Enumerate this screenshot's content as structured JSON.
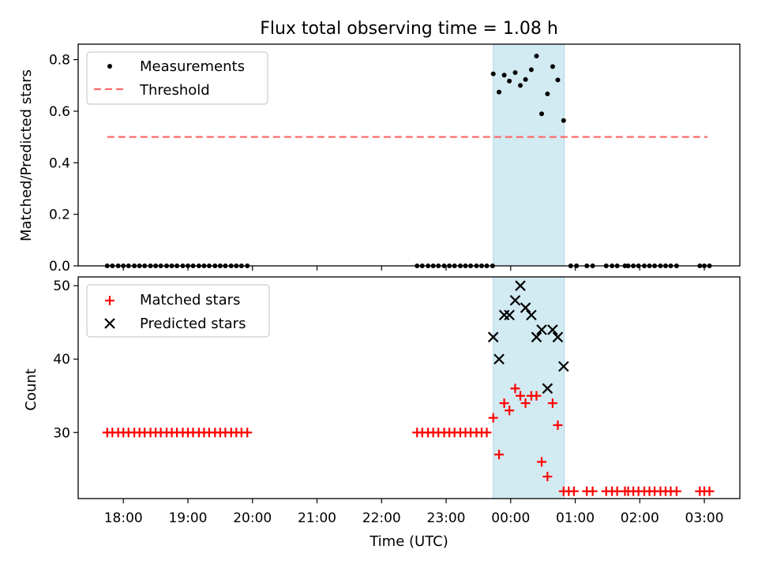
{
  "chart_data": [
    {
      "type": "scatter",
      "title": "Flux total observing time = 1.08 h",
      "xlabel": "",
      "ylabel": "Matched/Predicted stars",
      "xlim": [
        -6.7,
        3.55
      ],
      "ylim": [
        0,
        0.86
      ],
      "yticks": [
        0.0,
        0.2,
        0.4,
        0.6,
        0.8
      ],
      "ytick_labels": [
        "0.0",
        "0.2",
        "0.4",
        "0.6",
        "0.8"
      ],
      "highlight_span": [
        -0.27,
        0.83
      ],
      "highlight_color": "#add8e6",
      "threshold": {
        "label": "Threshold",
        "value": 0.5,
        "x_range": [
          -6.25,
          3.05
        ],
        "color": "#ff6b6b"
      },
      "series": [
        {
          "name": "Measurements",
          "color": "#000000",
          "x": [
            -6.25,
            -6.17,
            -6.08,
            -6.0,
            -5.92,
            -5.83,
            -5.75,
            -5.67,
            -5.58,
            -5.5,
            -5.42,
            -5.33,
            -5.25,
            -5.17,
            -5.08,
            -5.0,
            -4.92,
            -4.83,
            -4.75,
            -4.67,
            -4.58,
            -4.5,
            -4.42,
            -4.33,
            -4.25,
            -4.17,
            -4.08,
            -1.45,
            -1.37,
            -1.28,
            -1.2,
            -1.12,
            -1.03,
            -0.95,
            -0.87,
            -0.78,
            -0.7,
            -0.62,
            -0.53,
            -0.45,
            -0.37,
            -0.28,
            -0.27,
            -0.18,
            -0.1,
            -0.02,
            0.07,
            0.15,
            0.23,
            0.32,
            0.4,
            0.48,
            0.57,
            0.65,
            0.73,
            0.82,
            0.93,
            1.02,
            1.18,
            1.27,
            1.48,
            1.57,
            1.65,
            1.77,
            1.82,
            1.9,
            1.98,
            2.07,
            2.15,
            2.23,
            2.32,
            2.4,
            2.48,
            2.57,
            2.93,
            3.0,
            3.08
          ],
          "y": [
            0,
            0,
            0,
            0,
            0,
            0,
            0,
            0,
            0,
            0,
            0,
            0,
            0,
            0,
            0,
            0,
            0,
            0,
            0,
            0,
            0,
            0,
            0,
            0,
            0,
            0,
            0,
            0,
            0,
            0,
            0,
            0,
            0,
            0,
            0,
            0,
            0,
            0,
            0,
            0,
            0,
            0,
            0.745,
            0.674,
            0.74,
            0.717,
            0.75,
            0.7,
            0.723,
            0.761,
            0.814,
            0.59,
            0.667,
            0.773,
            0.721,
            0.564,
            0,
            0,
            0,
            0,
            0,
            0,
            0,
            0,
            0,
            0,
            0,
            0,
            0,
            0,
            0,
            0,
            0,
            0,
            0,
            0,
            0
          ]
        }
      ],
      "legend": "top-left"
    },
    {
      "type": "scatter",
      "title": "",
      "xlabel": "Time (UTC)",
      "ylabel": "Count",
      "xlim": [
        -6.7,
        3.55
      ],
      "ylim": [
        21,
        51.2
      ],
      "yticks": [
        30,
        40,
        50
      ],
      "ytick_labels": [
        "30",
        "40",
        "50"
      ],
      "xticks": [
        -6,
        -5,
        -4,
        -3,
        -2,
        -1,
        0,
        1,
        2,
        3
      ],
      "xtick_labels": [
        "18:00",
        "19:00",
        "20:00",
        "21:00",
        "22:00",
        "23:00",
        "00:00",
        "01:00",
        "02:00",
        "03:00"
      ],
      "highlight_span": [
        -0.27,
        0.83
      ],
      "highlight_color": "#add8e6",
      "series": [
        {
          "name": "Matched stars",
          "color": "#ff0000",
          "marker": "plus",
          "x": [
            -6.25,
            -6.17,
            -6.08,
            -6.0,
            -5.92,
            -5.83,
            -5.75,
            -5.67,
            -5.58,
            -5.5,
            -5.42,
            -5.33,
            -5.25,
            -5.17,
            -5.08,
            -5.0,
            -4.92,
            -4.83,
            -4.75,
            -4.67,
            -4.58,
            -4.5,
            -4.42,
            -4.33,
            -4.25,
            -4.17,
            -4.08,
            -1.45,
            -1.37,
            -1.28,
            -1.2,
            -1.12,
            -1.03,
            -0.95,
            -0.87,
            -0.78,
            -0.7,
            -0.62,
            -0.53,
            -0.45,
            -0.37,
            -0.27,
            -0.18,
            -0.1,
            -0.02,
            0.07,
            0.15,
            0.23,
            0.32,
            0.4,
            0.48,
            0.57,
            0.65,
            0.73,
            0.82,
            0.9,
            0.98,
            1.18,
            1.27,
            1.48,
            1.57,
            1.65,
            1.77,
            1.82,
            1.9,
            1.98,
            2.07,
            2.15,
            2.23,
            2.32,
            2.4,
            2.48,
            2.57,
            2.93,
            3.0,
            3.08
          ],
          "y": [
            30,
            30,
            30,
            30,
            30,
            30,
            30,
            30,
            30,
            30,
            30,
            30,
            30,
            30,
            30,
            30,
            30,
            30,
            30,
            30,
            30,
            30,
            30,
            30,
            30,
            30,
            30,
            30,
            30,
            30,
            30,
            30,
            30,
            30,
            30,
            30,
            30,
            30,
            30,
            30,
            30,
            32,
            27,
            34,
            33,
            36,
            35,
            34,
            35,
            35,
            26,
            24,
            34,
            31,
            22,
            22,
            22,
            22,
            22,
            22,
            22,
            22,
            22,
            22,
            22,
            22,
            22,
            22,
            22,
            22,
            22,
            22,
            22,
            22,
            22,
            22
          ]
        },
        {
          "name": "Predicted stars",
          "color": "#000000",
          "marker": "x",
          "x": [
            -0.27,
            -0.18,
            -0.1,
            -0.02,
            0.07,
            0.15,
            0.23,
            0.32,
            0.4,
            0.48,
            0.57,
            0.65,
            0.73,
            0.82
          ],
          "y": [
            43,
            40,
            46,
            46,
            48,
            50,
            47,
            46,
            43,
            44,
            36,
            44,
            43,
            39
          ]
        }
      ],
      "legend": "top-left"
    }
  ]
}
